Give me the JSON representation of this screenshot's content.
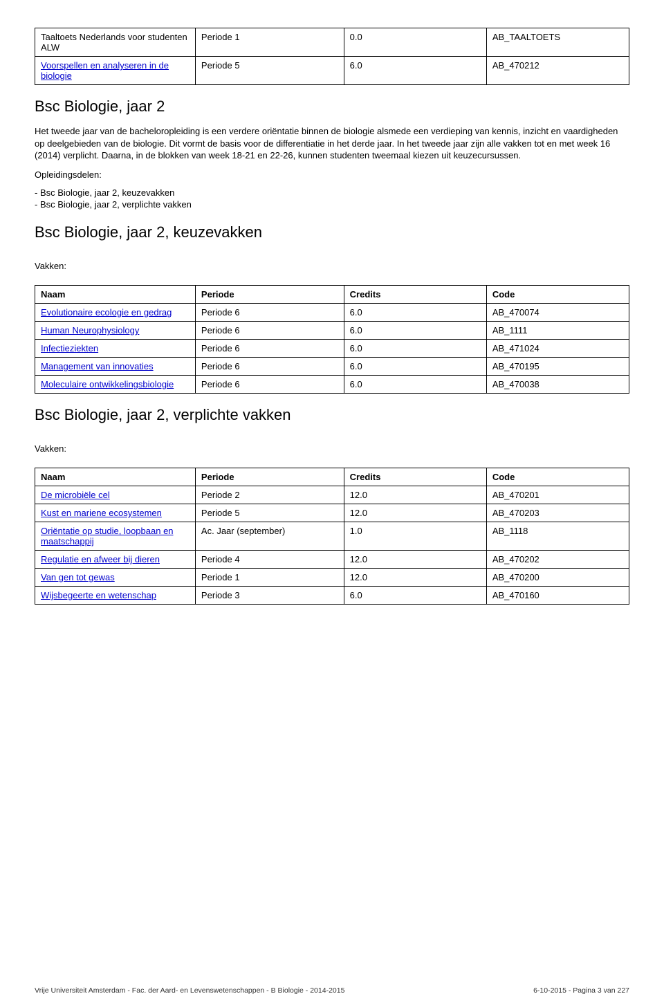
{
  "tables": {
    "top": {
      "rows": [
        {
          "name": "Taaltoets Nederlands voor studenten ALW",
          "periode": "Periode 1",
          "credits": "0.0",
          "code": "AB_TAALTOETS",
          "link": false
        },
        {
          "name": "Voorspellen en analyseren in de biologie",
          "periode": "Periode 5",
          "credits": "6.0",
          "code": "AB_470212",
          "link": true
        }
      ]
    },
    "keuzevakken": {
      "header": {
        "name": "Naam",
        "periode": "Periode",
        "credits": "Credits",
        "code": "Code"
      },
      "rows": [
        {
          "name": "Evolutionaire ecologie en gedrag",
          "periode": "Periode 6",
          "credits": "6.0",
          "code": "AB_470074",
          "link": true
        },
        {
          "name": "Human Neurophysiology",
          "periode": "Periode 6",
          "credits": "6.0",
          "code": "AB_1111",
          "link": true
        },
        {
          "name": "Infectieziekten",
          "periode": "Periode 6",
          "credits": "6.0",
          "code": "AB_471024",
          "link": true
        },
        {
          "name": "Management van innovaties",
          "periode": "Periode 6",
          "credits": "6.0",
          "code": "AB_470195",
          "link": true
        },
        {
          "name": "Moleculaire ontwikkelingsbiologie",
          "periode": "Periode 6",
          "credits": "6.0",
          "code": "AB_470038",
          "link": true
        }
      ]
    },
    "verplichte": {
      "header": {
        "name": "Naam",
        "periode": "Periode",
        "credits": "Credits",
        "code": "Code"
      },
      "rows": [
        {
          "name": "De microbiële cel",
          "periode": "Periode 2",
          "credits": "12.0",
          "code": "AB_470201",
          "link": true
        },
        {
          "name": "Kust en mariene ecosystemen",
          "periode": "Periode 5",
          "credits": "12.0",
          "code": "AB_470203",
          "link": true
        },
        {
          "name": "Oriëntatie op studie, loopbaan en maatschappij",
          "periode": "Ac. Jaar (september)",
          "credits": "1.0",
          "code": "AB_1118",
          "link": true
        },
        {
          "name": "Regulatie en afweer bij dieren",
          "periode": "Periode 4",
          "credits": "12.0",
          "code": "AB_470202",
          "link": true
        },
        {
          "name": "Van gen tot gewas",
          "periode": "Periode 1",
          "credits": "12.0",
          "code": "AB_470200",
          "link": true
        },
        {
          "name": "Wijsbegeerte en wetenschap",
          "periode": "Periode 3",
          "credits": "6.0",
          "code": "AB_470160",
          "link": true
        }
      ]
    }
  },
  "headings": {
    "h_jaar2": "Bsc Biologie, jaar 2",
    "h_keuzevakken": "Bsc Biologie, jaar 2, keuzevakken",
    "h_verplichte": "Bsc Biologie, jaar 2, verplichte vakken"
  },
  "paragraphs": {
    "intro": "Het tweede jaar van de bacheloropleiding is een verdere oriëntatie binnen de biologie alsmede een verdieping van kennis, inzicht en vaardigheden op deelgebieden van de biologie. Dit vormt de basis voor de differentiatie in het derde jaar. In het tweede jaar zijn alle vakken tot en met week 16 (2014) verplicht. Daarna, in de blokken van week 18-21 en 22-26, kunnen studenten tweemaal kiezen uit keuzecursussen.",
    "opleidingsdelen_label": "Opleidingsdelen:"
  },
  "bullets": [
    "Bsc Biologie, jaar 2, keuzevakken",
    "Bsc Biologie, jaar 2, verplichte vakken"
  ],
  "labels": {
    "vakken": "Vakken:"
  },
  "footer": {
    "left": "Vrije Universiteit Amsterdam - Fac. der Aard- en Levenswetenschappen - B Biologie - 2014-2015",
    "right": "6-10-2015 - Pagina 3 van 227"
  }
}
